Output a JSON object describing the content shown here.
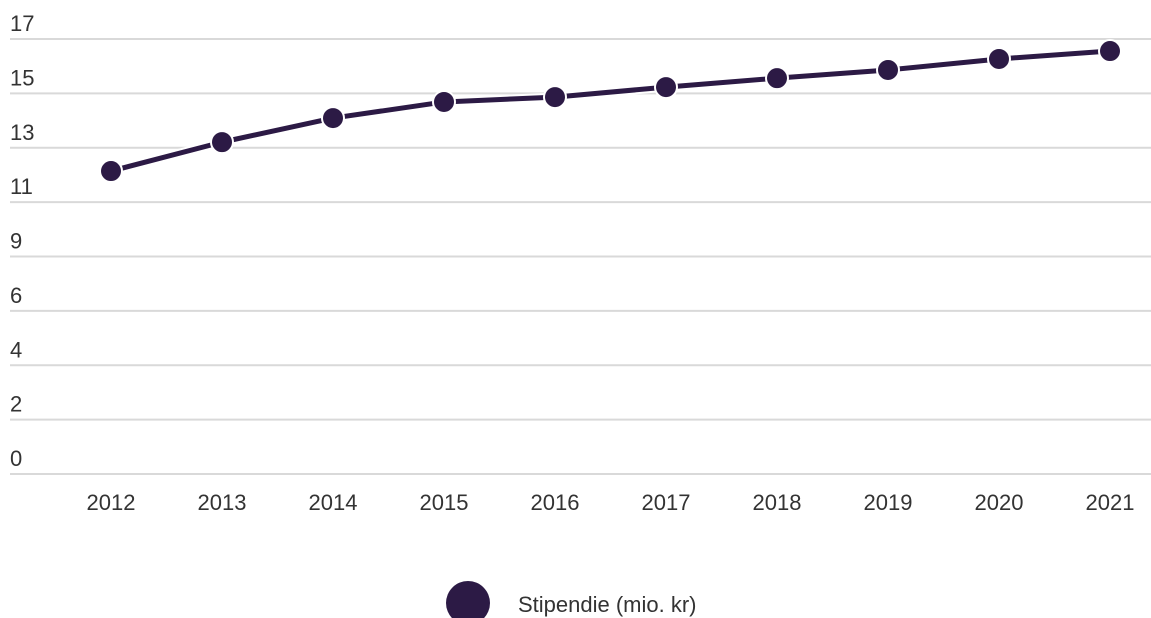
{
  "chart_data": {
    "type": "line",
    "categories": [
      "2012",
      "2013",
      "2014",
      "2015",
      "2016",
      "2017",
      "2018",
      "2019",
      "2020",
      "2021"
    ],
    "series": [
      {
        "name": "Stipendie (mio. kr)",
        "color": "#2c1a45",
        "values": [
          11.84,
          12.97,
          13.91,
          14.54,
          14.73,
          15.12,
          15.47,
          15.79,
          16.22,
          16.53
        ]
      }
    ],
    "ylim": [
      0,
      17
    ],
    "yticks": [
      0,
      {
        "value": 2.125,
        "label": "2"
      },
      {
        "value": 4.25,
        "label": "4"
      },
      {
        "value": 6.375,
        "label": "6"
      },
      {
        "value": 8.5,
        "label": "9"
      },
      {
        "value": 10.625,
        "label": "11"
      },
      {
        "value": 12.75,
        "label": "13"
      },
      {
        "value": 14.875,
        "label": "15"
      },
      17
    ],
    "grid": true,
    "legend": "bottom"
  }
}
